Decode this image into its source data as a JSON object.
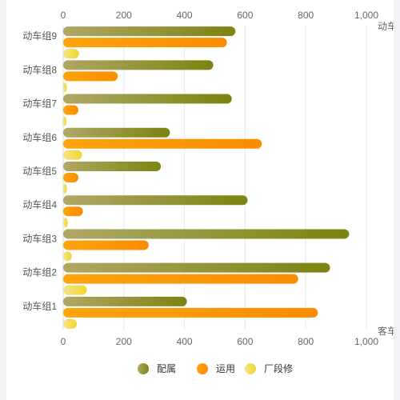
{
  "chart_data": {
    "type": "bar",
    "orientation": "horizontal",
    "categories": [
      "动车组1",
      "动车组2",
      "动车组3",
      "动车组4",
      "动车组5",
      "动车组6",
      "动车组7",
      "动车组8",
      "动车组9"
    ],
    "series": [
      {
        "name": "配属",
        "values": [
          408,
          880,
          943,
          608,
          322,
          352,
          556,
          495,
          568
        ],
        "color_start": "#b0a765",
        "color_end": "#7d8310"
      },
      {
        "name": "运用",
        "values": [
          840,
          775,
          282,
          65,
          50,
          655,
          50,
          180,
          540
        ],
        "color_start": "#fda40e",
        "color_end": "#fa8c00"
      },
      {
        "name": "厂段修",
        "values": [
          45,
          78,
          28,
          15,
          12,
          62,
          10,
          12,
          52
        ],
        "color_start": "#f7e58a",
        "color_end": "#f0d52c"
      }
    ],
    "xlim": [
      0,
      1000
    ],
    "ticks": [
      "0",
      "200",
      "400",
      "600",
      "800",
      "1,000"
    ],
    "top_axis_label": "动车",
    "bottom_axis_label": "客车",
    "grid": true,
    "legend_position": "bottom-center"
  }
}
